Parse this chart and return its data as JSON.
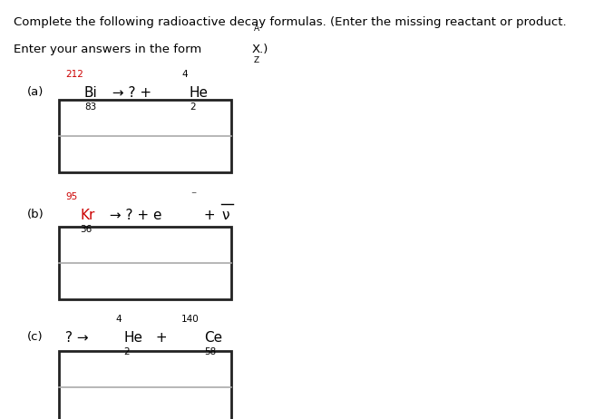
{
  "background_color": "#ffffff",
  "title_line1": "Complete the following radioactive decay formulas. (Enter the missing reactant or product.",
  "title_line2": "Enter your answers in the form",
  "form_A": "A",
  "form_X": "X.)",
  "form_Z": "Z",
  "text_color": "#000000",
  "red_color": "#cc0000",
  "box_inner_line_color": "#aaaaaa",
  "box_border_color": "#222222",
  "font_size_main": 9.5,
  "font_size_eq": 11,
  "font_size_script": 7.5,
  "fig_width": 6.66,
  "fig_height": 4.62,
  "dpi": 100
}
